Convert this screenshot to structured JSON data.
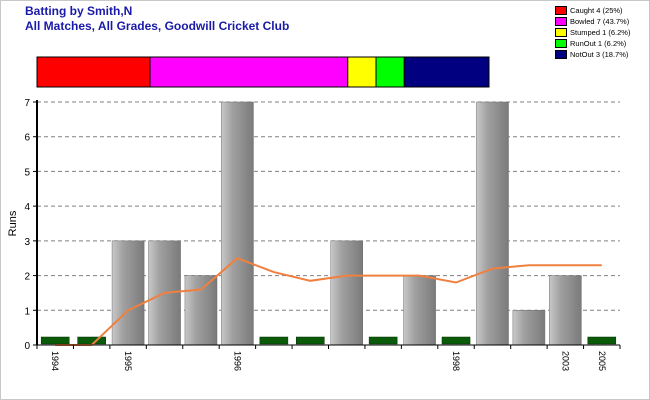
{
  "chart_data": [
    {
      "type": "stacked-bar",
      "title": "Batting by Smith,N",
      "subtitle": "All Matches, All Grades, Goodwill Cricket Club",
      "legend": [
        {
          "label": "Caught 4 (25%)",
          "value": 4,
          "color": "#ff0000"
        },
        {
          "label": "Bowled 7 (43.7%)",
          "value": 7,
          "color": "#ff00ff"
        },
        {
          "label": "Stumped 1 (6.2%)",
          "value": 1,
          "color": "#ffff00"
        },
        {
          "label": "RunOut 1 (6.2%)",
          "value": 1,
          "color": "#00ff00"
        },
        {
          "label": "NotOut 3 (18.7%)",
          "value": 3,
          "color": "#000080"
        }
      ],
      "legend_position": "top-right"
    },
    {
      "type": "bar",
      "ylabel": "Runs",
      "ylim": [
        0,
        7
      ],
      "yticks": [
        "0",
        "1",
        "2",
        "3",
        "4",
        "5",
        "6",
        "7"
      ],
      "grid": true,
      "values": [
        0,
        0,
        3,
        3,
        2,
        7,
        0,
        0,
        3,
        0,
        2,
        0,
        7,
        1,
        2,
        0
      ],
      "zero_marker_color": "#0a5a0a",
      "bar_color": "#a0a0a0",
      "trend_line": {
        "color": "#f08040",
        "values": [
          0,
          0,
          1,
          1.5,
          1.6,
          2.5,
          2.1,
          1.85,
          2,
          2,
          2,
          1.8,
          2.2,
          2.3,
          2.3,
          2.3
        ]
      },
      "xtick_labels": [
        {
          "index": 0,
          "label": "1994"
        },
        {
          "index": 2,
          "label": "1995"
        },
        {
          "index": 5,
          "label": "1996"
        },
        {
          "index": 11,
          "label": "1998"
        },
        {
          "index": 14,
          "label": "2003"
        },
        {
          "index": 15,
          "label": "2005"
        }
      ]
    }
  ]
}
